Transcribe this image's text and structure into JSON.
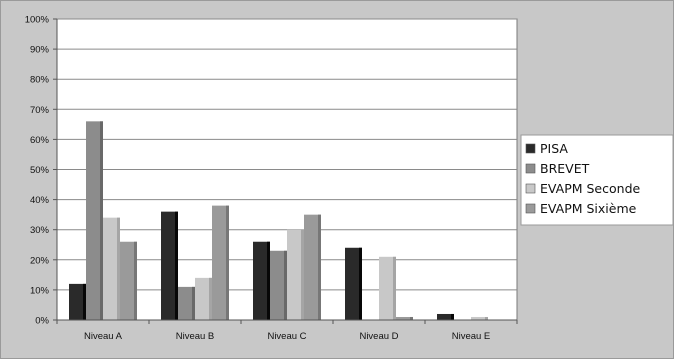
{
  "chart_data": {
    "type": "bar",
    "title": "",
    "xlabel": "",
    "ylabel": "",
    "ylim": [
      0,
      100
    ],
    "y_unit": "%",
    "y_ticks": [
      "0%",
      "10%",
      "20%",
      "30%",
      "40%",
      "50%",
      "60%",
      "70%",
      "80%",
      "90%",
      "100%"
    ],
    "categories": [
      "Niveau A",
      "Niveau B",
      "Niveau C",
      "Niveau D",
      "Niveau E"
    ],
    "series": [
      {
        "name": "PISA",
        "color": "#2a2a2a",
        "values": [
          12,
          36,
          26,
          24,
          2
        ]
      },
      {
        "name": "BREVET",
        "color": "#8c8c8c",
        "values": [
          66,
          11,
          23,
          0,
          0
        ]
      },
      {
        "name": "EVAPM Seconde",
        "color": "#c8c8c8",
        "values": [
          34,
          14,
          30,
          21,
          1
        ]
      },
      {
        "name": "EVAPM Sixième",
        "color": "#9a9a9a",
        "values": [
          26,
          38,
          35,
          1,
          0
        ]
      }
    ],
    "grid": true,
    "legend_position": "right",
    "plot_background": "#ffffff",
    "chart_background": "#c8c8c8"
  }
}
